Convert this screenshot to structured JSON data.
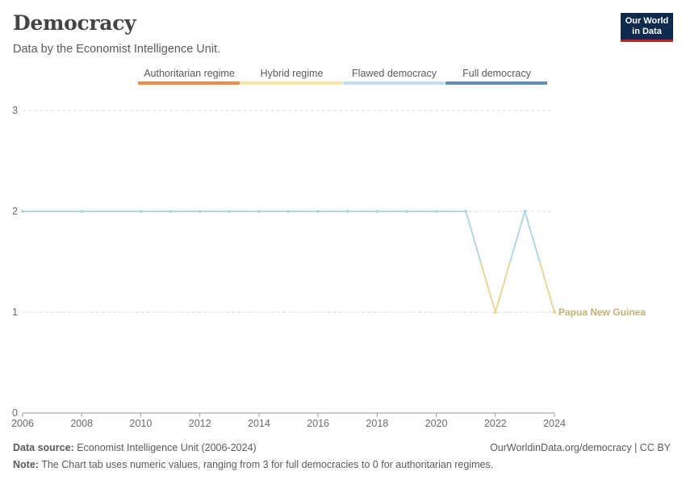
{
  "header": {
    "title": "Democracy",
    "subtitle": "Data by the Economist Intelligence Unit.",
    "logo_line1": "Our World",
    "logo_line2": "in Data"
  },
  "footer": {
    "source_label": "Data source:",
    "source_text": "Economist Intelligence Unit (2006-2024)",
    "url_text": "OurWorldinData.org/democracy | CC BY",
    "note_label": "Note:",
    "note_text": "The Chart tab uses numeric values, ranging from 3 for full democracies to 0 for authoritarian regimes."
  },
  "chart_data": {
    "type": "line",
    "x": [
      2006,
      2008,
      2010,
      2011,
      2012,
      2013,
      2014,
      2015,
      2016,
      2017,
      2018,
      2019,
      2020,
      2021,
      2022,
      2023,
      2024
    ],
    "series": [
      {
        "name": "Papua New Guinea",
        "values": [
          2,
          2,
          2,
          2,
          2,
          2,
          2,
          2,
          2,
          2,
          2,
          2,
          2,
          2,
          1,
          2,
          1
        ]
      }
    ],
    "xlim": [
      2006,
      2024
    ],
    "ylim": [
      0,
      3
    ],
    "xticks": [
      "2006",
      "2008",
      "2010",
      "2012",
      "2014",
      "2016",
      "2018",
      "2020",
      "2022",
      "2024"
    ],
    "yticks": [
      "0",
      "1",
      "2",
      "3"
    ],
    "legend": {
      "placement": "top",
      "entries": [
        {
          "label": "Authoritarian regime",
          "color": "#f08a4b"
        },
        {
          "label": "Hybrid regime",
          "color": "#f7e7a0"
        },
        {
          "label": "Flawed democracy",
          "color": "#bfe0e8"
        },
        {
          "label": "Full democracy",
          "color": "#5b8db5"
        }
      ]
    },
    "colors": {
      "flawed_line": "#b5d6de",
      "hybrid_line": "#e6d79a",
      "label": "#c3b373"
    },
    "grid": true
  }
}
